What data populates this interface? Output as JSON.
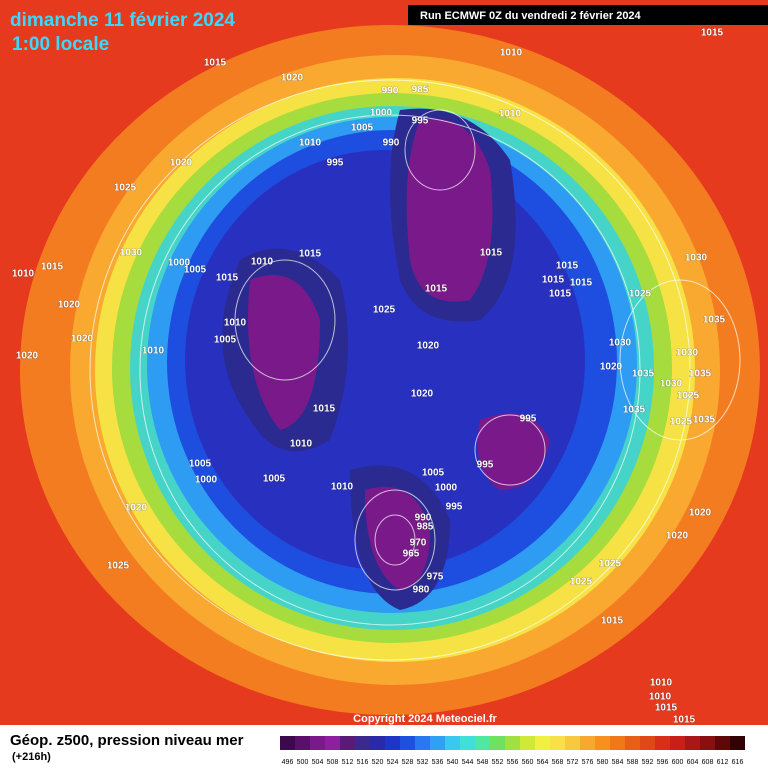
{
  "header": {
    "date": "dimanche 11 février 2024",
    "time": "1:00 locale",
    "run": "Run ECMWF 0Z du vendredi 2 février 2024"
  },
  "copyright": "Copyright 2024 Meteociel.fr",
  "footer": {
    "title": "Géop. z500, pression niveau mer",
    "lead": "(+216h)"
  },
  "isobar_labels": [
    "1015",
    "1015",
    "1020",
    "1010",
    "990",
    "985",
    "1000",
    "1010",
    "995",
    "1005",
    "990",
    "1010",
    "995",
    "1020",
    "1025",
    "1030",
    "1010",
    "1015",
    "1000",
    "1005",
    "1015",
    "1015",
    "1015",
    "1015",
    "1015",
    "1015",
    "1030",
    "1025",
    "1015",
    "1025",
    "1010",
    "1005",
    "1020",
    "1010",
    "1020",
    "1020",
    "1020",
    "1015",
    "1030",
    "1020",
    "1030",
    "1035",
    "1035",
    "1035",
    "1030",
    "1025",
    "1035",
    "1020",
    "1015",
    "995",
    "1025",
    "1035",
    "1010",
    "995",
    "1005",
    "1000",
    "1005",
    "1010",
    "1005",
    "1000",
    "995",
    "990",
    "985",
    "970",
    "965",
    "975",
    "980",
    "1020",
    "1020",
    "1020",
    "1025",
    "1025",
    "1025",
    "1015",
    "1010",
    "1010",
    "1015",
    "1015",
    "1010"
  ],
  "colorbar": {
    "labels": [
      496,
      500,
      504,
      508,
      512,
      516,
      520,
      524,
      528,
      532,
      536,
      540,
      544,
      548,
      552,
      556,
      560,
      564,
      568,
      572,
      576,
      580,
      584,
      588,
      592,
      596,
      600,
      604,
      608,
      612,
      616
    ],
    "colors": [
      "#3a0a4a",
      "#5a0f6a",
      "#7a1a8a",
      "#8e1fa0",
      "#5a1a78",
      "#3a2a90",
      "#2a2aa8",
      "#1e35c8",
      "#1e50e0",
      "#2a78f0",
      "#30a0f5",
      "#38c8f0",
      "#40e0d8",
      "#50e8a0",
      "#70e060",
      "#a0e040",
      "#d0e838",
      "#f0f040",
      "#f8e048",
      "#f8c840",
      "#f8a830",
      "#f89020",
      "#f07818",
      "#e86018",
      "#e04818",
      "#d83018",
      "#c82018",
      "#a81818",
      "#881010",
      "#600808",
      "#300404"
    ]
  }
}
